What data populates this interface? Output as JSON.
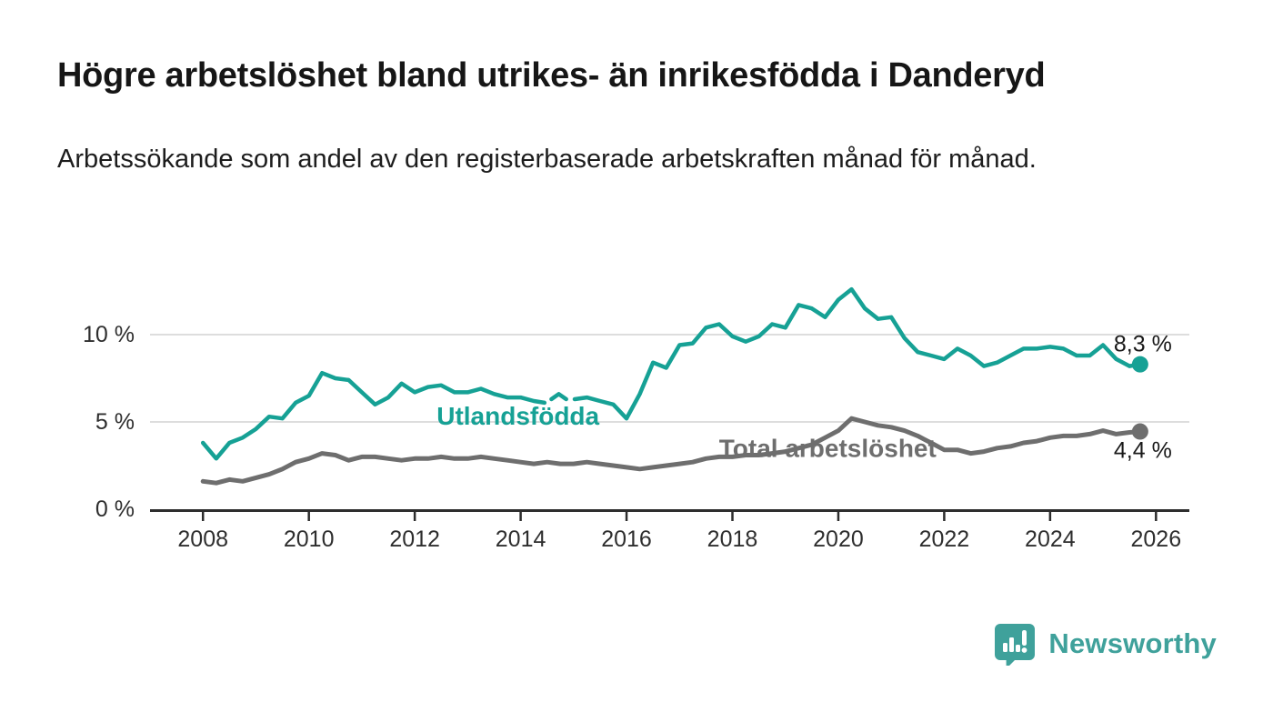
{
  "header": {
    "title": "Högre arbetslöshet bland utrikes- än inrikesfödda i Danderyd",
    "subtitle": "Arbetssökande som andel av den registerbaserade arbetskraften månad för månad."
  },
  "footer": {
    "brand": "Newsworthy",
    "logo_icon": "newsworthy-bar-chart-exclamation-icon"
  },
  "colors": {
    "series_teal": "#16a195",
    "series_gray": "#6e6e6e",
    "grid": "#d8d8d8",
    "axis": "#2d2d2d",
    "tick_text": "#2e2e2e",
    "end_label_text": "#191919",
    "brand_teal": "#3fa19b"
  },
  "chart_data": {
    "type": "line",
    "title": "Högre arbetslöshet bland utrikes- än inrikesfödda i Danderyd",
    "subtitle": "Arbetssökande som andel av den registerbaserade arbetskraften månad för månad.",
    "xlabel": "",
    "ylabel": "",
    "x_range": [
      2007.0,
      2026.63
    ],
    "y_range": [
      0,
      13
    ],
    "grid": "horizontal",
    "x_ticks": [
      {
        "value": 2008,
        "label": "2008"
      },
      {
        "value": 2010,
        "label": "2010"
      },
      {
        "value": 2012,
        "label": "2012"
      },
      {
        "value": 2014,
        "label": "2014"
      },
      {
        "value": 2016,
        "label": "2016"
      },
      {
        "value": 2018,
        "label": "2018"
      },
      {
        "value": 2020,
        "label": "2020"
      },
      {
        "value": 2022,
        "label": "2022"
      },
      {
        "value": 2024,
        "label": "2024"
      },
      {
        "value": 2026,
        "label": "2026"
      }
    ],
    "y_ticks": [
      {
        "value": 0,
        "label": "0 %",
        "gridline": false
      },
      {
        "value": 5,
        "label": "5 %",
        "gridline": true
      },
      {
        "value": 10,
        "label": "10 %",
        "gridline": true
      }
    ],
    "series": [
      {
        "name": "Total arbetslöshet",
        "color_key": "series_gray",
        "stroke_width": 5,
        "inline_label": {
          "text": "Total arbetslöshet",
          "x": 2019.8,
          "y": 3.0
        },
        "end_dot": {
          "x": 2025.7,
          "y": 4.45,
          "radius": 9
        },
        "end_label": {
          "text": "4,4 %",
          "dx": 35,
          "dy": 29
        },
        "segments": [
          [
            [
              2008.0,
              1.6
            ],
            [
              2008.25,
              1.5
            ],
            [
              2008.5,
              1.7
            ],
            [
              2008.75,
              1.6
            ],
            [
              2009.0,
              1.8
            ],
            [
              2009.25,
              2.0
            ],
            [
              2009.5,
              2.3
            ],
            [
              2009.75,
              2.7
            ],
            [
              2010.0,
              2.9
            ],
            [
              2010.25,
              3.2
            ],
            [
              2010.5,
              3.1
            ],
            [
              2010.75,
              2.8
            ],
            [
              2011.0,
              3.0
            ],
            [
              2011.25,
              3.0
            ],
            [
              2011.5,
              2.9
            ],
            [
              2011.75,
              2.8
            ],
            [
              2012.0,
              2.9
            ],
            [
              2012.25,
              2.9
            ],
            [
              2012.5,
              3.0
            ],
            [
              2012.75,
              2.9
            ],
            [
              2013.0,
              2.9
            ],
            [
              2013.25,
              3.0
            ],
            [
              2013.5,
              2.9
            ],
            [
              2013.75,
              2.8
            ],
            [
              2014.0,
              2.7
            ],
            [
              2014.25,
              2.6
            ],
            [
              2014.5,
              2.7
            ],
            [
              2014.75,
              2.6
            ],
            [
              2015.0,
              2.6
            ],
            [
              2015.25,
              2.7
            ],
            [
              2015.5,
              2.6
            ],
            [
              2015.75,
              2.5
            ],
            [
              2016.0,
              2.4
            ],
            [
              2016.25,
              2.3
            ],
            [
              2016.5,
              2.4
            ],
            [
              2016.75,
              2.5
            ],
            [
              2017.0,
              2.6
            ],
            [
              2017.25,
              2.7
            ],
            [
              2017.5,
              2.9
            ],
            [
              2017.75,
              3.0
            ],
            [
              2018.0,
              3.0
            ],
            [
              2018.25,
              3.1
            ],
            [
              2018.5,
              3.1
            ],
            [
              2018.75,
              3.2
            ],
            [
              2019.0,
              3.3
            ],
            [
              2019.25,
              3.5
            ],
            [
              2019.5,
              3.7
            ],
            [
              2019.75,
              4.1
            ],
            [
              2020.0,
              4.5
            ],
            [
              2020.25,
              5.2
            ],
            [
              2020.5,
              5.0
            ],
            [
              2020.75,
              4.8
            ],
            [
              2021.0,
              4.7
            ],
            [
              2021.25,
              4.5
            ],
            [
              2021.5,
              4.2
            ],
            [
              2021.75,
              3.8
            ],
            [
              2022.0,
              3.4
            ],
            [
              2022.25,
              3.4
            ],
            [
              2022.5,
              3.2
            ],
            [
              2022.75,
              3.3
            ],
            [
              2023.0,
              3.5
            ],
            [
              2023.25,
              3.6
            ],
            [
              2023.5,
              3.8
            ],
            [
              2023.75,
              3.9
            ],
            [
              2024.0,
              4.1
            ],
            [
              2024.25,
              4.2
            ],
            [
              2024.5,
              4.2
            ],
            [
              2024.75,
              4.3
            ],
            [
              2025.0,
              4.5
            ],
            [
              2025.25,
              4.3
            ],
            [
              2025.5,
              4.4
            ],
            [
              2025.7,
              4.45
            ]
          ]
        ]
      },
      {
        "name": "Utlandsfödda",
        "color_key": "series_teal",
        "stroke_width": 4.5,
        "inline_label": {
          "text": "Utlandsfödda",
          "x": 2013.95,
          "y": 4.85
        },
        "end_dot": {
          "x": 2025.7,
          "y": 8.3,
          "radius": 9
        },
        "end_label": {
          "text": "8,3 %",
          "dx": 35,
          "dy": -14
        },
        "segments": [
          [
            [
              2008.0,
              3.8
            ],
            [
              2008.25,
              2.9
            ],
            [
              2008.5,
              3.8
            ],
            [
              2008.75,
              4.1
            ],
            [
              2009.0,
              4.6
            ],
            [
              2009.25,
              5.3
            ],
            [
              2009.5,
              5.2
            ],
            [
              2009.75,
              6.1
            ],
            [
              2010.0,
              6.5
            ],
            [
              2010.25,
              7.8
            ],
            [
              2010.5,
              7.5
            ],
            [
              2010.75,
              7.4
            ],
            [
              2011.0,
              6.7
            ],
            [
              2011.25,
              6.0
            ],
            [
              2011.5,
              6.4
            ],
            [
              2011.75,
              7.2
            ],
            [
              2012.0,
              6.7
            ],
            [
              2012.25,
              7.0
            ],
            [
              2012.5,
              7.1
            ],
            [
              2012.75,
              6.7
            ],
            [
              2013.0,
              6.7
            ],
            [
              2013.25,
              6.9
            ],
            [
              2013.5,
              6.6
            ],
            [
              2013.75,
              6.4
            ],
            [
              2014.0,
              6.4
            ],
            [
              2014.25,
              6.2
            ],
            [
              2014.45,
              6.1
            ]
          ],
          [
            [
              2014.58,
              6.3
            ],
            [
              2014.72,
              6.6
            ],
            [
              2014.86,
              6.3
            ]
          ],
          [
            [
              2015.02,
              6.3
            ],
            [
              2015.25,
              6.4
            ],
            [
              2015.5,
              6.2
            ],
            [
              2015.75,
              6.0
            ],
            [
              2016.0,
              5.2
            ],
            [
              2016.25,
              6.6
            ],
            [
              2016.5,
              8.4
            ],
            [
              2016.75,
              8.1
            ],
            [
              2017.0,
              9.4
            ],
            [
              2017.25,
              9.5
            ],
            [
              2017.5,
              10.4
            ],
            [
              2017.75,
              10.6
            ],
            [
              2018.0,
              9.9
            ],
            [
              2018.25,
              9.6
            ],
            [
              2018.5,
              9.9
            ],
            [
              2018.75,
              10.6
            ],
            [
              2019.0,
              10.4
            ],
            [
              2019.25,
              11.7
            ],
            [
              2019.5,
              11.5
            ],
            [
              2019.75,
              11.0
            ],
            [
              2020.0,
              12.0
            ],
            [
              2020.25,
              12.6
            ],
            [
              2020.5,
              11.5
            ],
            [
              2020.75,
              10.9
            ],
            [
              2021.0,
              11.0
            ],
            [
              2021.25,
              9.8
            ],
            [
              2021.5,
              9.0
            ],
            [
              2021.75,
              8.8
            ],
            [
              2022.0,
              8.6
            ],
            [
              2022.25,
              9.2
            ],
            [
              2022.5,
              8.8
            ],
            [
              2022.75,
              8.2
            ],
            [
              2023.0,
              8.4
            ],
            [
              2023.25,
              8.8
            ],
            [
              2023.5,
              9.2
            ],
            [
              2023.75,
              9.2
            ],
            [
              2024.0,
              9.3
            ],
            [
              2024.25,
              9.2
            ],
            [
              2024.5,
              8.8
            ],
            [
              2024.75,
              8.8
            ],
            [
              2025.0,
              9.4
            ],
            [
              2025.25,
              8.6
            ],
            [
              2025.5,
              8.2
            ],
            [
              2025.7,
              8.3
            ]
          ]
        ]
      }
    ]
  }
}
